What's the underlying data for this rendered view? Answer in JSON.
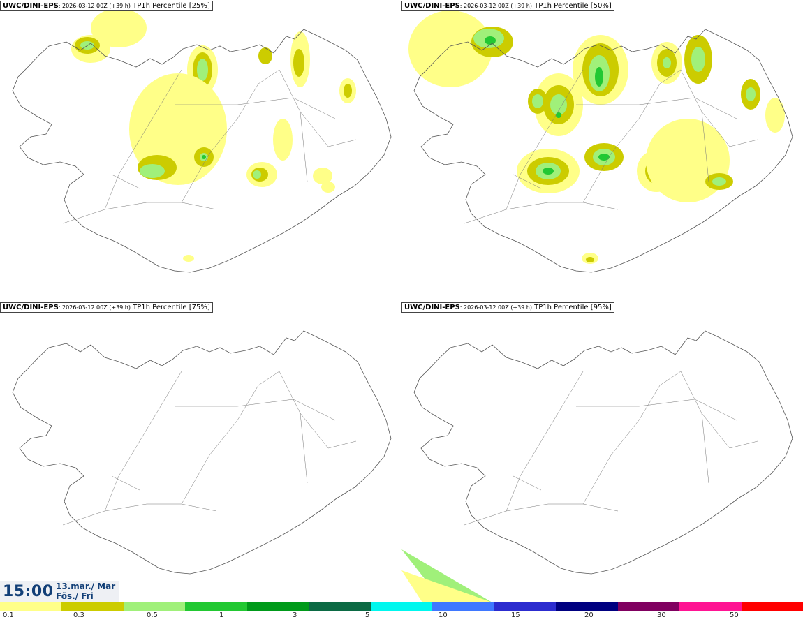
{
  "panels": [
    {
      "model": "UWC/DINI-EPS",
      "run": ": 2026-03-12 00Z (+39 h)",
      "product": " TP1h Percentile [25%]",
      "level": 0
    },
    {
      "model": "UWC/DINI-EPS",
      "run": ": 2026-03-12 00Z (+39 h)",
      "product": " TP1h Percentile [50%]",
      "level": 1
    },
    {
      "model": "UWC/DINI-EPS",
      "run": ": 2026-03-12 00Z (+39 h)",
      "product": " TP1h Percentile [75%]",
      "level": 2
    },
    {
      "model": "UWC/DINI-EPS",
      "run": ": 2026-03-12 00Z (+39 h)",
      "product": " TP1h Percentile [95%]",
      "level": 3
    }
  ],
  "time": {
    "hour": "15:00",
    "date": "13.mar./ Mar",
    "day": "Fös./ Fri"
  },
  "colorbar": {
    "colors": [
      "#ffff88",
      "#cccc00",
      "#a0f07a",
      "#22c832",
      "#009a1a",
      "#0b6a44",
      "#00f7ee",
      "#3f78ff",
      "#2c2ccf",
      "#000080",
      "#800060",
      "#ff1493",
      "#ff0000"
    ],
    "ticks": [
      "0.1",
      "0.3",
      "0.5",
      "1",
      "3",
      "5",
      "10",
      "15",
      "20",
      "30",
      "50"
    ]
  }
}
